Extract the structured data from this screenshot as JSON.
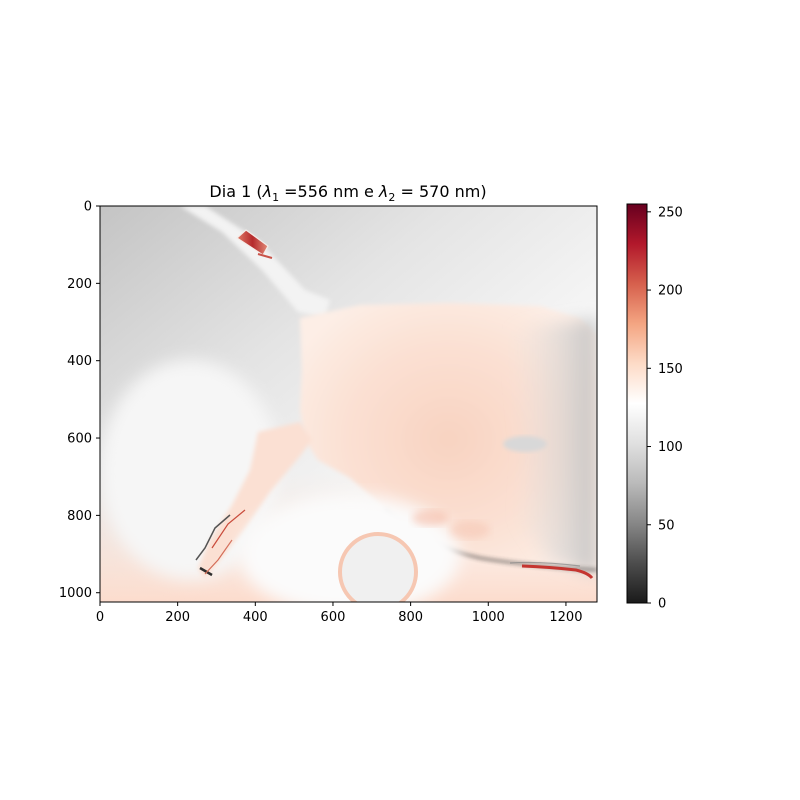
{
  "chart_data": {
    "type": "heatmap",
    "title": "Dia 1 (λ₁ =556 nm e λ₂ = 570 nm)",
    "title_parts": {
      "prefix": "Dia 1 (",
      "sym1": "λ",
      "sub1": "1",
      "mid": " =556 nm e ",
      "sym2": "λ",
      "sub2": "2",
      "suffix": " = 570 nm)"
    },
    "image_width": 1280,
    "image_height": 1024,
    "xlim": [
      0,
      1280
    ],
    "ylim": [
      1024,
      0
    ],
    "x_ticks": [
      0,
      200,
      400,
      600,
      800,
      1000,
      1200
    ],
    "y_ticks": [
      0,
      200,
      400,
      600,
      800,
      1000
    ],
    "colorbar": {
      "colormap": "RdGy_r",
      "range": [
        0,
        255
      ],
      "ticks": [
        0,
        50,
        100,
        150,
        200,
        250
      ],
      "stops": [
        {
          "offset": 0.0,
          "color": "#1a1a1a"
        },
        {
          "offset": 0.1,
          "color": "#4d4d4d"
        },
        {
          "offset": 0.2,
          "color": "#878787"
        },
        {
          "offset": 0.3,
          "color": "#bababa"
        },
        {
          "offset": 0.4,
          "color": "#e0e0e0"
        },
        {
          "offset": 0.5,
          "color": "#ffffff"
        },
        {
          "offset": 0.6,
          "color": "#fddbc7"
        },
        {
          "offset": 0.7,
          "color": "#f4a582"
        },
        {
          "offset": 0.8,
          "color": "#d6604d"
        },
        {
          "offset": 0.9,
          "color": "#b2182b"
        },
        {
          "offset": 1.0,
          "color": "#67001f"
        }
      ]
    },
    "colors": {
      "background_light": "#f4f4f4",
      "background_grey": "#cfcfcf",
      "tissue_peach": "#fbe2d6",
      "tissue_peach_strong": "#f6c9b3",
      "hotspot_red": "#c4312f",
      "dark_edge": "#3a3a3a"
    }
  }
}
